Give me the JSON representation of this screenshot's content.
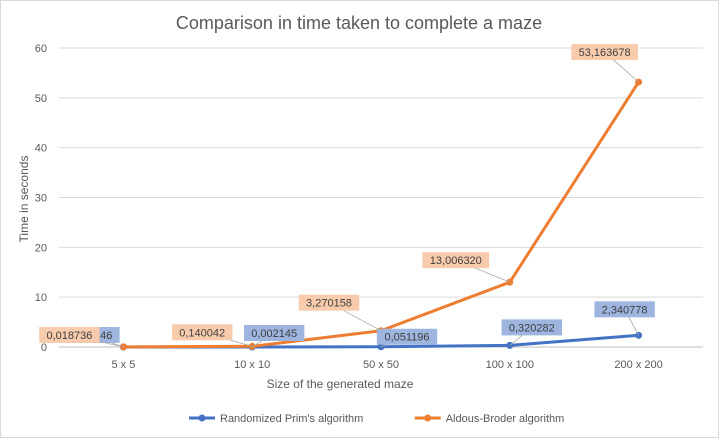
{
  "chart_data": {
    "type": "line",
    "title": "Comparison in time taken to complete a maze",
    "xlabel": "Size of the generated maze",
    "ylabel": "Time in seconds",
    "categories": [
      "5 x 5",
      "10 x 10",
      "50 x 50",
      "100 x 100",
      "200 x 200"
    ],
    "ylim": [
      0,
      60
    ],
    "yticks": [
      0,
      10,
      20,
      30,
      40,
      50,
      60
    ],
    "grid": true,
    "legend": "bottom",
    "series": [
      {
        "name": "Randomized Prim's algorithm",
        "color": "#4472C4",
        "label_bg": "#9DB5DF",
        "values": [
          0.000546,
          0.002145,
          0.051196,
          0.320282,
          2.340778
        ],
        "labels": [
          "0,000546",
          "0,002145",
          "0,051196",
          "0,320282",
          "2,340778"
        ]
      },
      {
        "name": "Aldous-Broder algorithm",
        "color": "#ED7D31",
        "label_bg": "#F8CBAD",
        "values": [
          0.018736,
          0.140042,
          3.270158,
          13.00632,
          53.163678
        ],
        "labels": [
          "0,018736",
          "0,140042",
          "3,270158",
          "13,006320",
          "53,163678"
        ]
      }
    ]
  }
}
